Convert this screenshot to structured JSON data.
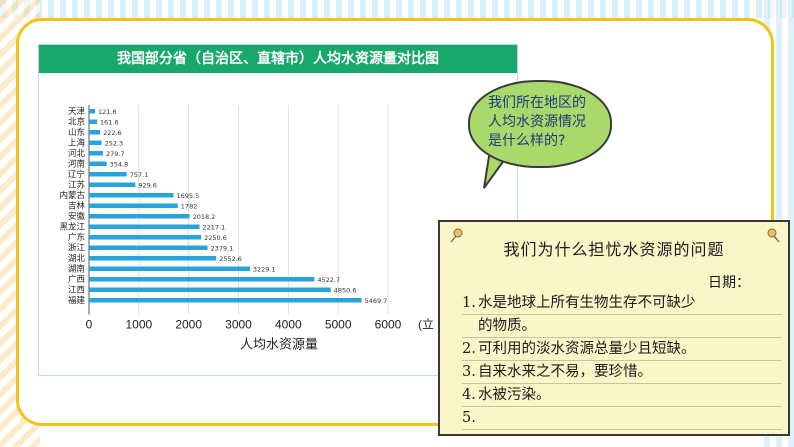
{
  "chart_data": {
    "type": "bar",
    "orientation": "horizontal",
    "title": "我国部分省（自治区、直辖市）人均水资源量对比图",
    "categories": [
      "天津",
      "北京",
      "山东",
      "上海",
      "河北",
      "河南",
      "辽宁",
      "江苏",
      "内蒙古",
      "吉林",
      "安徽",
      "黑龙江",
      "广东",
      "浙江",
      "湖北",
      "湖南",
      "广西",
      "江西",
      "福建"
    ],
    "values": [
      121.6,
      161.6,
      222.6,
      252.3,
      279.7,
      354.8,
      757.1,
      929.6,
      1695.5,
      1782,
      2018.2,
      2217.1,
      2250.6,
      2379.1,
      2552.6,
      3229.1,
      4522.7,
      4850.6,
      5469.7
    ],
    "value_labels": [
      "121.6",
      "161.6",
      "222.6",
      "252.3",
      "279.7",
      "354.8",
      "757.1",
      "929.6",
      "1695.5",
      "1782",
      "2018.2",
      "2217.1",
      "2250.6",
      "2379.1",
      "2552.6",
      "3229.1",
      "4522.7",
      "4850.6",
      "5469.7"
    ],
    "xlabel": "人均水资源量",
    "xlabel_unit": "(立",
    "xticks": [
      "0",
      "1000",
      "2000",
      "3000",
      "4000",
      "5000",
      "6000"
    ],
    "xlim": [
      0,
      6000
    ],
    "bar_color": "#29a3dc",
    "title_bg": "#18a86b"
  },
  "bubble": {
    "lines": [
      "我们所在地区的",
      "人均水资源情况",
      "是什么样的?"
    ]
  },
  "note": {
    "title": "我们为什么担忧水资源的问题",
    "date_label": "日期：",
    "items": [
      {
        "num": "1.",
        "text": "水是地球上所有生物生存不可缺少",
        "cont": "的物质。"
      },
      {
        "num": "2.",
        "text": "可利用的淡水资源总量少且短缺。"
      },
      {
        "num": "3.",
        "text": "自来水来之不易，要珍惜。"
      },
      {
        "num": "4.",
        "text": "水被污染。"
      },
      {
        "num": "5.",
        "text": ""
      }
    ]
  },
  "colors": {
    "frame": "#f3c318",
    "bubble": "#a8d96a",
    "bubble_text": "#1c3a80",
    "note_bg": "#fbf6c8"
  },
  "icons": [
    "pushpin-icon"
  ]
}
